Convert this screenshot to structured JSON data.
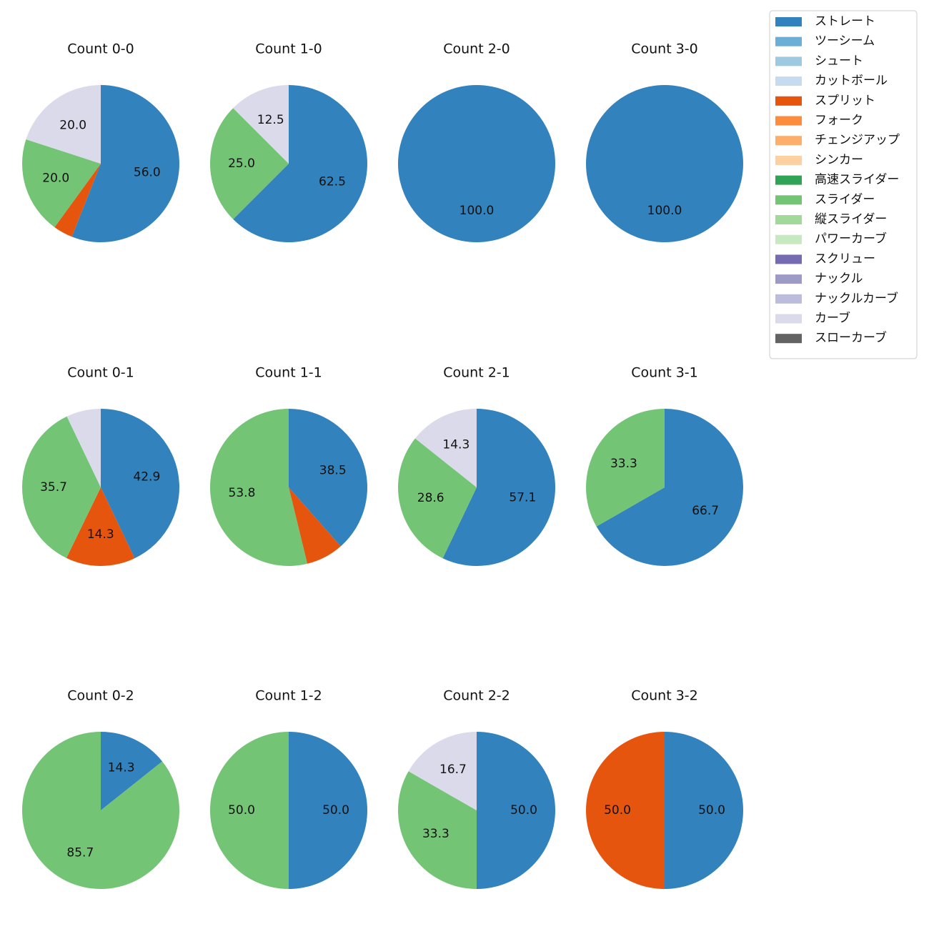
{
  "legend": [
    {
      "name": "ストレート",
      "color": "#3182bd"
    },
    {
      "name": "ツーシーム",
      "color": "#6baed6"
    },
    {
      "name": "シュート",
      "color": "#9ecae1"
    },
    {
      "name": "カットボール",
      "color": "#c6dbef"
    },
    {
      "name": "スプリット",
      "color": "#e6550d"
    },
    {
      "name": "フォーク",
      "color": "#fd8d3c"
    },
    {
      "name": "チェンジアップ",
      "color": "#fdae6b"
    },
    {
      "name": "シンカー",
      "color": "#fdd0a2"
    },
    {
      "name": "高速スライダー",
      "color": "#31a354"
    },
    {
      "name": "スライダー",
      "color": "#74c476"
    },
    {
      "name": "縦スライダー",
      "color": "#a1d99b"
    },
    {
      "name": "パワーカーブ",
      "color": "#c7e9c0"
    },
    {
      "name": "スクリュー",
      "color": "#756bb1"
    },
    {
      "name": "ナックル",
      "color": "#9e9ac8"
    },
    {
      "name": "ナックルカーブ",
      "color": "#bcbddc"
    },
    {
      "name": "カーブ",
      "color": "#dadaeb"
    },
    {
      "name": "スローカーブ",
      "color": "#636363"
    }
  ],
  "chart_data": [
    {
      "type": "pie",
      "title": "Count 0-0",
      "slices": [
        {
          "pitch": "ストレート",
          "value": 56.0,
          "label": "56.0"
        },
        {
          "pitch": "スプリット",
          "value": 4.0,
          "label": ""
        },
        {
          "pitch": "スライダー",
          "value": 20.0,
          "label": "20.0"
        },
        {
          "pitch": "カーブ",
          "value": 20.0,
          "label": "20.0"
        }
      ]
    },
    {
      "type": "pie",
      "title": "Count 1-0",
      "slices": [
        {
          "pitch": "ストレート",
          "value": 62.5,
          "label": "62.5"
        },
        {
          "pitch": "スライダー",
          "value": 25.0,
          "label": "25.0"
        },
        {
          "pitch": "カーブ",
          "value": 12.5,
          "label": "12.5"
        }
      ]
    },
    {
      "type": "pie",
      "title": "Count 2-0",
      "slices": [
        {
          "pitch": "ストレート",
          "value": 100.0,
          "label": "100.0"
        }
      ]
    },
    {
      "type": "pie",
      "title": "Count 3-0",
      "slices": [
        {
          "pitch": "ストレート",
          "value": 100.0,
          "label": "100.0"
        }
      ]
    },
    {
      "type": "pie",
      "title": "Count 0-1",
      "slices": [
        {
          "pitch": "ストレート",
          "value": 42.9,
          "label": "42.9"
        },
        {
          "pitch": "スプリット",
          "value": 14.3,
          "label": "14.3"
        },
        {
          "pitch": "スライダー",
          "value": 35.7,
          "label": "35.7"
        },
        {
          "pitch": "カーブ",
          "value": 7.1,
          "label": ""
        }
      ]
    },
    {
      "type": "pie",
      "title": "Count 1-1",
      "slices": [
        {
          "pitch": "ストレート",
          "value": 38.5,
          "label": "38.5"
        },
        {
          "pitch": "スプリット",
          "value": 7.7,
          "label": ""
        },
        {
          "pitch": "スライダー",
          "value": 53.8,
          "label": "53.8"
        }
      ]
    },
    {
      "type": "pie",
      "title": "Count 2-1",
      "slices": [
        {
          "pitch": "ストレート",
          "value": 57.1,
          "label": "57.1"
        },
        {
          "pitch": "スライダー",
          "value": 28.6,
          "label": "28.6"
        },
        {
          "pitch": "カーブ",
          "value": 14.3,
          "label": "14.3"
        }
      ]
    },
    {
      "type": "pie",
      "title": "Count 3-1",
      "slices": [
        {
          "pitch": "ストレート",
          "value": 66.7,
          "label": "66.7"
        },
        {
          "pitch": "スライダー",
          "value": 33.3,
          "label": "33.3"
        }
      ]
    },
    {
      "type": "pie",
      "title": "Count 0-2",
      "slices": [
        {
          "pitch": "ストレート",
          "value": 14.3,
          "label": "14.3"
        },
        {
          "pitch": "スライダー",
          "value": 85.7,
          "label": "85.7"
        }
      ]
    },
    {
      "type": "pie",
      "title": "Count 1-2",
      "slices": [
        {
          "pitch": "ストレート",
          "value": 50.0,
          "label": "50.0"
        },
        {
          "pitch": "スライダー",
          "value": 50.0,
          "label": "50.0"
        }
      ]
    },
    {
      "type": "pie",
      "title": "Count 2-2",
      "slices": [
        {
          "pitch": "ストレート",
          "value": 50.0,
          "label": "50.0"
        },
        {
          "pitch": "スライダー",
          "value": 33.3,
          "label": "33.3"
        },
        {
          "pitch": "カーブ",
          "value": 16.7,
          "label": "16.7"
        }
      ]
    },
    {
      "type": "pie",
      "title": "Count 3-2",
      "slices": [
        {
          "pitch": "ストレート",
          "value": 50.0,
          "label": "50.0"
        },
        {
          "pitch": "スプリット",
          "value": 50.0,
          "label": "50.0"
        }
      ]
    }
  ]
}
